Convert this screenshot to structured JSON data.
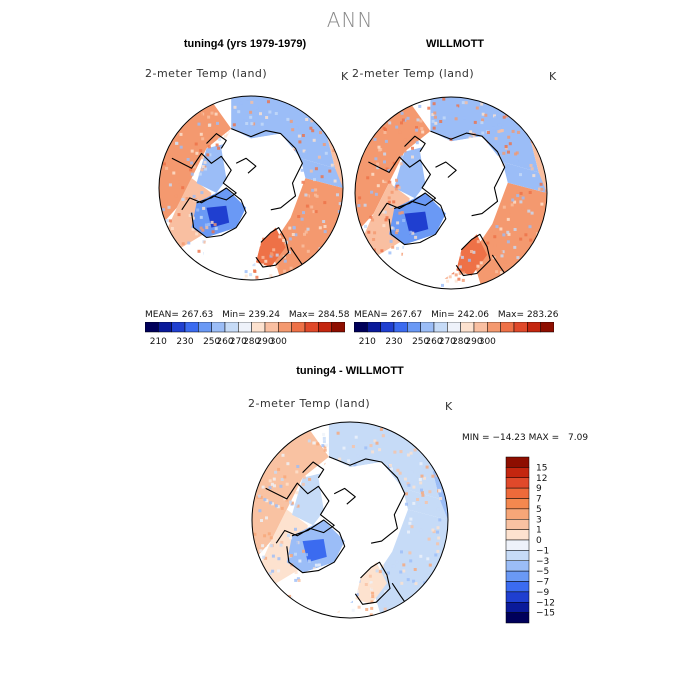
{
  "figure_title": "ANN",
  "chart_data": [
    {
      "type": "heatmap",
      "projection": "north-polar-stereographic",
      "title": "tuning4 (yrs 1979-1979)",
      "subtitle": "2-meter Temp (land)",
      "units": "K",
      "stats": {
        "mean_label": "MEAN=",
        "mean": "267.63",
        "min_label": "Min=",
        "min": "239.24",
        "max_label": "Max=",
        "max": "284.58"
      },
      "colorbar": {
        "orientation": "horizontal",
        "levels": [
          "210",
          "230",
          "250",
          "260",
          "270",
          "280",
          "290",
          "300"
        ],
        "colors": [
          "#00005a",
          "#0a1a9a",
          "#1f3fd0",
          "#3b6bf0",
          "#6a99f5",
          "#9bbdf7",
          "#c6dbf7",
          "#eef2fa",
          "#fde2cf",
          "#f9bfa1",
          "#f4996f",
          "#ee7147",
          "#e0492a",
          "#c4260f",
          "#8e0e00"
        ]
      }
    },
    {
      "type": "heatmap",
      "projection": "north-polar-stereographic",
      "title": "WILLMOTT",
      "subtitle": "2-meter Temp (land)",
      "units": "K",
      "stats": {
        "mean_label": "MEAN=",
        "mean": "267.67",
        "min_label": "Min=",
        "min": "242.06",
        "max_label": "Max=",
        "max": "283.26"
      },
      "colorbar": {
        "orientation": "horizontal",
        "levels": [
          "210",
          "230",
          "250",
          "260",
          "270",
          "280",
          "290",
          "300"
        ],
        "colors": [
          "#00005a",
          "#0a1a9a",
          "#1f3fd0",
          "#3b6bf0",
          "#6a99f5",
          "#9bbdf7",
          "#c6dbf7",
          "#eef2fa",
          "#fde2cf",
          "#f9bfa1",
          "#f4996f",
          "#ee7147",
          "#e0492a",
          "#c4260f",
          "#8e0e00"
        ]
      }
    },
    {
      "type": "heatmap",
      "projection": "north-polar-stereographic",
      "title": "tuning4 - WILLMOTT",
      "subtitle": "2-meter Temp (land)",
      "units": "K",
      "stats": {
        "min_label": "MIN =",
        "min": "−14.23",
        "max_label": "MAX =",
        "max": "7.09"
      },
      "colorbar": {
        "orientation": "vertical",
        "levels": [
          "15",
          "12",
          "9",
          "7",
          "5",
          "3",
          "1",
          "0",
          "−1",
          "−3",
          "−5",
          "−7",
          "−9",
          "−12",
          "−15"
        ],
        "colors": [
          "#8e0e00",
          "#c4260f",
          "#e0492a",
          "#ee6a3a",
          "#f4884f",
          "#f7a678",
          "#f9c2a2",
          "#fde2cf",
          "#eef2fa",
          "#c6dbf7",
          "#9bbdf7",
          "#6a99f5",
          "#3b6bf0",
          "#1f3fd0",
          "#0a1a9a",
          "#00005a"
        ]
      }
    }
  ]
}
